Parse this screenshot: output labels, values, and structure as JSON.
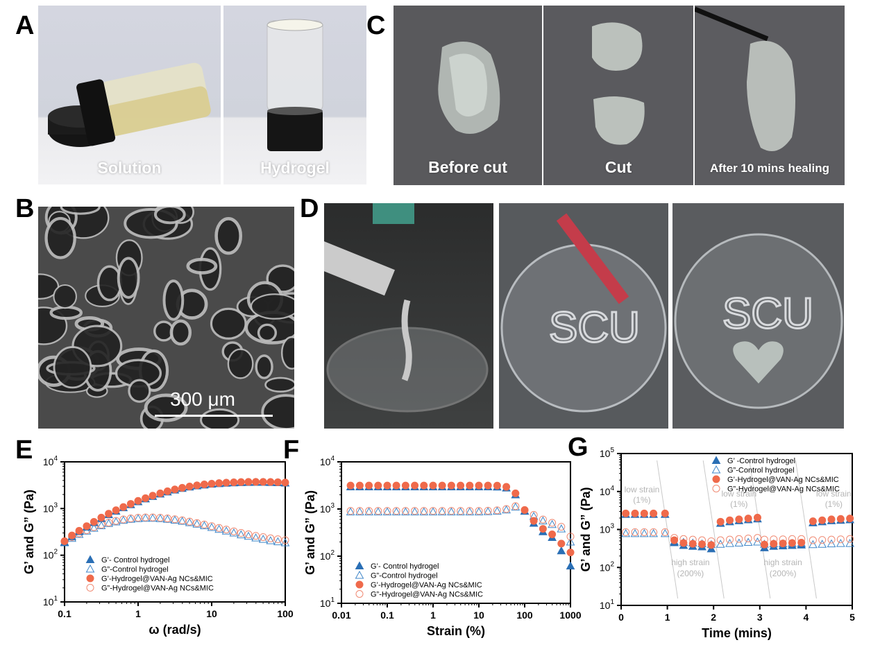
{
  "panels": {
    "A": {
      "letter": "A",
      "captions": [
        "Solution",
        "Hydrogel"
      ]
    },
    "B": {
      "letter": "B",
      "scale_bar": "300 μm"
    },
    "C": {
      "letter": "C",
      "captions": [
        "Before cut",
        "Cut",
        "After 10 mins healing"
      ]
    },
    "D": {
      "letter": "D",
      "writing": "SCU"
    },
    "E": {
      "letter": "E"
    },
    "F": {
      "letter": "F"
    },
    "G": {
      "letter": "G",
      "annotations": {
        "low_strain": "low strain",
        "low_pct": "(1%)",
        "high_strain": "high strain",
        "high_pct": "(200%)"
      }
    }
  },
  "colors": {
    "blue": "#2a6fb5",
    "orange": "#ef6a4b",
    "open_blue": "#3f86c8",
    "open_orange": "#f08a73"
  },
  "chart_data": [
    {
      "panel": "E",
      "type": "scatter",
      "xlabel": "ω (rad/s)",
      "ylabel": "G’ and G” (Pa)",
      "xscale": "log",
      "yscale": "log",
      "xlim": [
        0.1,
        100
      ],
      "ylim": [
        10,
        10000
      ],
      "xticks": [
        "0.1",
        "1",
        "10",
        "100"
      ],
      "legend": [
        "G’- Control hydrogel",
        "G”-Control hydrogel",
        "G’-Hydrogel@VAN-Ag NCs&MIC",
        "G”-Hydrogel@VAN-Ag NCs&MIC"
      ],
      "x": [
        0.1,
        0.126,
        0.158,
        0.2,
        0.251,
        0.316,
        0.398,
        0.501,
        0.631,
        0.794,
        1,
        1.26,
        1.58,
        2,
        2.51,
        3.16,
        3.98,
        5.01,
        6.31,
        7.94,
        10,
        12.6,
        15.8,
        20,
        25.1,
        31.6,
        39.8,
        50.1,
        63.1,
        79.4,
        100
      ],
      "series": [
        {
          "name": "G’- Control hydrogel",
          "values": [
            190,
            250,
            320,
            400,
            500,
            610,
            740,
            880,
            1040,
            1210,
            1400,
            1610,
            1820,
            2050,
            2270,
            2490,
            2700,
            2890,
            3060,
            3200,
            3330,
            3420,
            3500,
            3560,
            3600,
            3630,
            3640,
            3640,
            3620,
            3580,
            3520
          ]
        },
        {
          "name": "G”-Control hydrogel",
          "values": [
            185,
            230,
            280,
            330,
            380,
            430,
            480,
            520,
            560,
            590,
            610,
            620,
            620,
            610,
            590,
            565,
            535,
            500,
            465,
            430,
            395,
            360,
            330,
            300,
            275,
            255,
            235,
            220,
            205,
            195,
            185
          ]
        },
        {
          "name": "G’-Hydrogel@VAN-Ag NCs&MIC",
          "values": [
            200,
            265,
            335,
            420,
            520,
            640,
            775,
            920,
            1080,
            1260,
            1460,
            1670,
            1890,
            2120,
            2350,
            2570,
            2780,
            2970,
            3140,
            3290,
            3410,
            3510,
            3590,
            3650,
            3690,
            3720,
            3730,
            3730,
            3710,
            3670,
            3610
          ]
        },
        {
          "name": "G”-Hydrogel@VAN-Ag NCs&MIC",
          "values": [
            195,
            245,
            295,
            345,
            400,
            450,
            500,
            545,
            585,
            615,
            635,
            645,
            645,
            635,
            615,
            590,
            560,
            525,
            490,
            455,
            420,
            385,
            355,
            325,
            300,
            280,
            260,
            245,
            230,
            220,
            210
          ]
        }
      ]
    },
    {
      "panel": "F",
      "type": "scatter",
      "xlabel": "Strain (%)",
      "ylabel": "G’ and G” (Pa)",
      "xscale": "log",
      "yscale": "log",
      "xlim": [
        0.01,
        1000
      ],
      "ylim": [
        10,
        10000
      ],
      "xticks": [
        "0.01",
        "0.1",
        "1",
        "10",
        "100",
        "1000"
      ],
      "legend": [
        "G’- Control hydrogel",
        "G”-Control hydrogel",
        "G’-Hydrogel@VAN-Ag NCs&MIC",
        "G”-Hydrogel@VAN-Ag NCs&MIC"
      ],
      "x": [
        0.0158,
        0.0251,
        0.0398,
        0.0631,
        0.1,
        0.158,
        0.251,
        0.398,
        0.631,
        1,
        1.58,
        2.51,
        3.98,
        6.31,
        10,
        15.8,
        25.1,
        39.8,
        63.1,
        100,
        158,
        251,
        398,
        631,
        1000
      ],
      "series": [
        {
          "name": "G’- Control hydrogel",
          "values": [
            2950,
            2950,
            2950,
            2950,
            2950,
            2950,
            2950,
            2950,
            2950,
            2950,
            2950,
            2950,
            2950,
            2950,
            2950,
            2950,
            2930,
            2800,
            2000,
            900,
            500,
            330,
            250,
            130,
            62
          ]
        },
        {
          "name": "G”-Control hydrogel",
          "values": [
            870,
            870,
            870,
            870,
            870,
            870,
            870,
            870,
            870,
            870,
            870,
            870,
            870,
            870,
            870,
            880,
            900,
            960,
            1100,
            900,
            700,
            560,
            470,
            380,
            200
          ]
        },
        {
          "name": "G’-Hydrogel@VAN-Ag NCs&MIC",
          "values": [
            3150,
            3150,
            3150,
            3150,
            3150,
            3150,
            3150,
            3150,
            3150,
            3150,
            3150,
            3150,
            3150,
            3150,
            3150,
            3150,
            3130,
            2950,
            2150,
            950,
            560,
            380,
            290,
            185,
            120
          ]
        },
        {
          "name": "G”-Hydrogel@VAN-Ag NCs&MIC",
          "values": [
            910,
            910,
            910,
            910,
            910,
            910,
            910,
            910,
            910,
            910,
            910,
            910,
            910,
            910,
            910,
            920,
            940,
            1000,
            1150,
            950,
            750,
            600,
            510,
            420,
            260
          ]
        }
      ]
    },
    {
      "panel": "G",
      "type": "scatter",
      "xlabel": "Time (mins)",
      "ylabel": "G’ and G” (Pa)",
      "yscale": "log",
      "xlim": [
        0,
        5
      ],
      "ylim": [
        10,
        100000
      ],
      "xticks": [
        "0",
        "1",
        "2",
        "3",
        "4",
        "5"
      ],
      "legend": [
        "G’ -Control hydrogel",
        "G”-Control hydrogel",
        "G’-Hydrogel@VAN-Ag NCs&MIC",
        "G”-Hydrogel@VAN-Ag NCs&MIC"
      ],
      "x": [
        0.1,
        0.3,
        0.5,
        0.7,
        0.95,
        1.15,
        1.35,
        1.55,
        1.75,
        1.95,
        2.15,
        2.35,
        2.55,
        2.75,
        2.95,
        3.1,
        3.3,
        3.5,
        3.7,
        3.9,
        4.15,
        4.35,
        4.55,
        4.75,
        4.95
      ],
      "series": [
        {
          "name": "G’ -Control hydrogel",
          "values": [
            2500,
            2500,
            2500,
            2500,
            2500,
            450,
            380,
            360,
            350,
            310,
            1450,
            1600,
            1700,
            1800,
            1900,
            330,
            360,
            370,
            380,
            390,
            1500,
            1600,
            1700,
            1750,
            1800
          ]
        },
        {
          "name": "G”-Control hydrogel",
          "values": [
            780,
            780,
            780,
            780,
            780,
            480,
            460,
            440,
            420,
            400,
            410,
            430,
            440,
            460,
            470,
            410,
            420,
            420,
            430,
            430,
            400,
            410,
            420,
            430,
            430
          ]
        },
        {
          "name": "G’-Hydrogel@VAN-Ag NCs&MIC",
          "values": [
            2650,
            2650,
            2650,
            2650,
            2650,
            520,
            440,
            420,
            410,
            390,
            1600,
            1750,
            1850,
            1950,
            2050,
            400,
            420,
            430,
            440,
            450,
            1650,
            1750,
            1850,
            1900,
            1950
          ]
        },
        {
          "name": "G”-Hydrogel@VAN-Ag NCs&MIC",
          "values": [
            850,
            850,
            850,
            850,
            850,
            600,
            560,
            540,
            520,
            490,
            520,
            540,
            560,
            580,
            600,
            540,
            550,
            550,
            560,
            560,
            520,
            530,
            540,
            550,
            560
          ]
        }
      ]
    }
  ]
}
